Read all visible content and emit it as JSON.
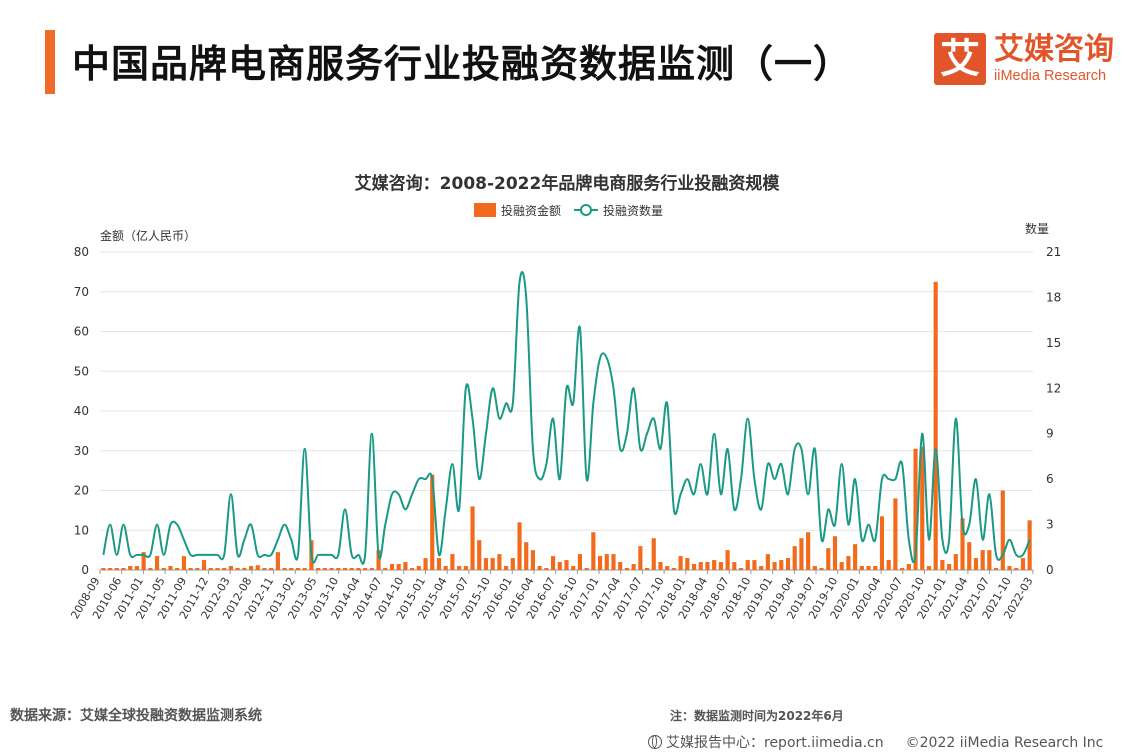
{
  "header": {
    "title": "中国品牌电商服务行业投融资数据监测（一）",
    "accent_color": "#f06a2a"
  },
  "logo": {
    "mark": "艾",
    "name_cn": "艾媒咨询",
    "name_en": "iiMedia Research",
    "color": "#e2552b"
  },
  "footer": {
    "source": "数据来源：艾媒全球投融资数据监测系统",
    "note": "注：数据监测时间为2022年6月",
    "report_center": "艾媒报告中心：report.iimedia.cn",
    "copyright": "©2022  iiMedia Research  Inc"
  },
  "chart_data": {
    "type": "bar+line",
    "title": "艾媒咨询：2008-2022年品牌电商服务行业投融资规模",
    "legend": {
      "position": "top-center",
      "bar_label": "投融资金额",
      "line_label": "投融资数量"
    },
    "y_left": {
      "label": "金额（亿人民币）",
      "min": 0,
      "max": 80,
      "ticks": [
        0,
        10,
        20,
        30,
        40,
        50,
        60,
        70,
        80
      ]
    },
    "y_right": {
      "label": "数量",
      "min": 0,
      "max": 21,
      "ticks": [
        0,
        3,
        6,
        9,
        12,
        15,
        18,
        21
      ]
    },
    "x_tick_labels": [
      "2008-09",
      "2010-06",
      "2011-01",
      "2011-05",
      "2011-09",
      "2011-12",
      "2012-03",
      "2012-08",
      "2012-11",
      "2013-02",
      "2013-05",
      "2013-10",
      "2014-04",
      "2014-07",
      "2014-10",
      "2015-01",
      "2015-04",
      "2015-07",
      "2015-10",
      "2016-01",
      "2016-04",
      "2016-07",
      "2016-10",
      "2017-01",
      "2017-04",
      "2017-07",
      "2017-10",
      "2018-01",
      "2018-04",
      "2018-07",
      "2018-10",
      "2019-01",
      "2019-04",
      "2019-07",
      "2019-10",
      "2020-01",
      "2020-04",
      "2020-07",
      "2020-10",
      "2021-01",
      "2021-04",
      "2021-07",
      "2021-10",
      "2022-03"
    ],
    "grid": true,
    "colors": {
      "bar": "#f26b1d",
      "line": "#1a9a86",
      "grid": "#e6e6e6",
      "axis": "#999999"
    },
    "series": [
      {
        "name": "投融资金额",
        "type": "bar",
        "axis": "left",
        "values": [
          0.5,
          0.5,
          0.5,
          0.5,
          1,
          1,
          4.5,
          0.5,
          3.5,
          0.5,
          1,
          0.5,
          3.5,
          0.5,
          0.5,
          2.5,
          0.5,
          0.5,
          0.5,
          1,
          0.5,
          0.5,
          1,
          1.2,
          0.5,
          0.5,
          4.5,
          0.5,
          0.5,
          0.5,
          0.5,
          7.5,
          0.5,
          0.5,
          0.5,
          0.5,
          0.5,
          0.5,
          0.5,
          0.5,
          0.5,
          5,
          0.5,
          1.5,
          1.5,
          2,
          0.5,
          1,
          3,
          24,
          3,
          1,
          4,
          1,
          1,
          16,
          7.5,
          3,
          3,
          4,
          1,
          3,
          12,
          7,
          5,
          1,
          0.5,
          3.5,
          2,
          2.5,
          1,
          4,
          0.5,
          9.5,
          3.5,
          4,
          4,
          2,
          0.5,
          1.5,
          6,
          0.5,
          8,
          2,
          1,
          0.5,
          3.5,
          3,
          1.5,
          2,
          2,
          2.5,
          2,
          5,
          2,
          0.5,
          2.5,
          2.5,
          1,
          4,
          2,
          2.5,
          3,
          6,
          8,
          9.5,
          1,
          0.5,
          5.5,
          8.5,
          2,
          3.5,
          6.5,
          1,
          1,
          1,
          13.5,
          2.5,
          18,
          0.5,
          1.5,
          30.5,
          31,
          1,
          72.5,
          2.5,
          1.5,
          4,
          13,
          7,
          3,
          5,
          5,
          0.5,
          20,
          1,
          0.5,
          3,
          12.5
        ]
      },
      {
        "name": "投融资数量",
        "type": "line",
        "axis": "right",
        "values": [
          1,
          3,
          1,
          3,
          1,
          1,
          1,
          1,
          3,
          1,
          3,
          3,
          2,
          1,
          1,
          1,
          1,
          1,
          1,
          5,
          1,
          2,
          3,
          1,
          1,
          1,
          2,
          3,
          2,
          1,
          8,
          1,
          1,
          1,
          1,
          1,
          4,
          1,
          1,
          1,
          9,
          1,
          3,
          5,
          5,
          4,
          5,
          6,
          6,
          6,
          1,
          4,
          7,
          4,
          12,
          10,
          6,
          9,
          12,
          10,
          11,
          11,
          19,
          18,
          8,
          6,
          7,
          10,
          6,
          12,
          11,
          16,
          6,
          11,
          14,
          14,
          12,
          8,
          9,
          12,
          8,
          9,
          10,
          8,
          11,
          4,
          5,
          6,
          5,
          7,
          5,
          9,
          5,
          8,
          4,
          6,
          10,
          6,
          4,
          7,
          6,
          7,
          5,
          8,
          8,
          5,
          8,
          2,
          4,
          3,
          7,
          3,
          6,
          2,
          3,
          2,
          6,
          6,
          6,
          7,
          2,
          1,
          9,
          2,
          8,
          2,
          2,
          10,
          3,
          3,
          6,
          2,
          5,
          1,
          1,
          2,
          1,
          1,
          2
        ]
      }
    ]
  }
}
